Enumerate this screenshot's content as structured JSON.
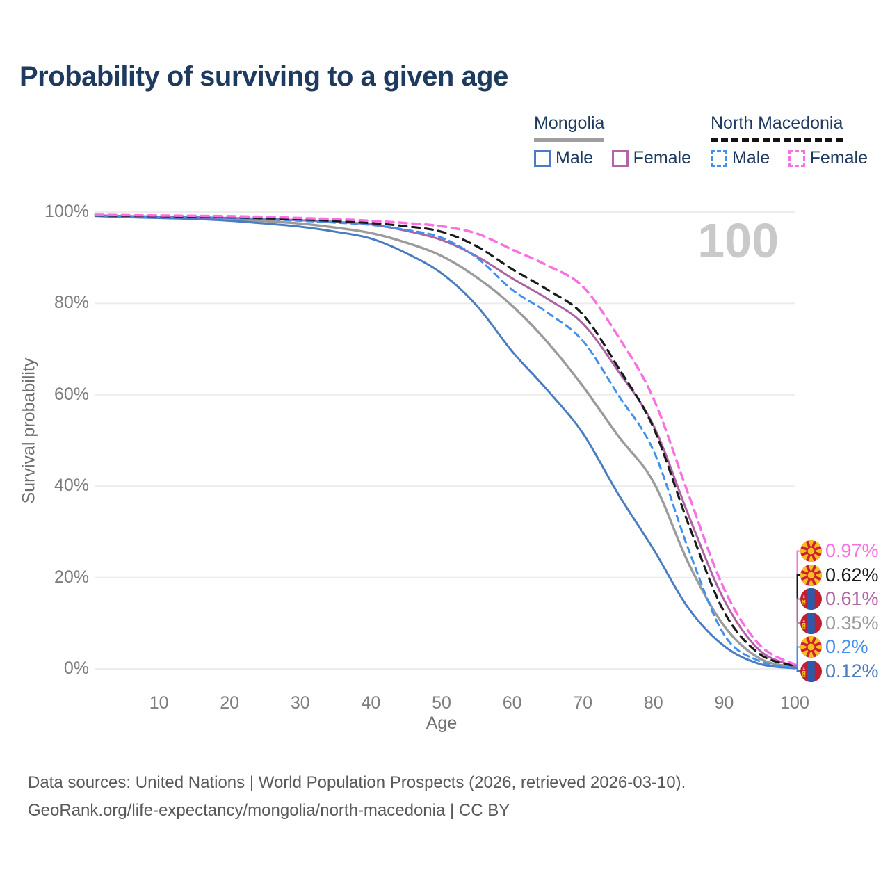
{
  "title": "Probability of surviving to a given age",
  "watermark": "100",
  "legend": {
    "groups": [
      {
        "label": "Mongolia",
        "line_style": "solid",
        "underline_color": "#9e9e9e",
        "items": [
          {
            "label": "Male",
            "color": "#4a7cc2"
          },
          {
            "label": "Female",
            "color": "#b164a8"
          }
        ]
      },
      {
        "label": "North Macedonia",
        "line_style": "dashed",
        "underline_color": "#141414",
        "items": [
          {
            "label": "Male",
            "color": "#4190ef"
          },
          {
            "label": "Female",
            "color": "#fa70e2"
          }
        ]
      }
    ]
  },
  "chart_data": {
    "type": "line",
    "xlabel": "Age",
    "ylabel": "Survival probability",
    "xlim": [
      0,
      100
    ],
    "ylim": [
      0,
      100
    ],
    "grid": "horizontal",
    "x": [
      1,
      5,
      10,
      15,
      20,
      25,
      30,
      35,
      40,
      45,
      50,
      55,
      60,
      65,
      70,
      75,
      80,
      85,
      90,
      95,
      100
    ],
    "x_ticks": [
      {
        "value": 10,
        "label": "10"
      },
      {
        "value": 20,
        "label": "20"
      },
      {
        "value": 30,
        "label": "30"
      },
      {
        "value": 40,
        "label": "40"
      },
      {
        "value": 50,
        "label": "50"
      },
      {
        "value": 60,
        "label": "60"
      },
      {
        "value": 70,
        "label": "70"
      },
      {
        "value": 80,
        "label": "80"
      },
      {
        "value": 90,
        "label": "90"
      },
      {
        "value": 100,
        "label": "100"
      }
    ],
    "y_ticks": [
      {
        "value": 0,
        "label": "0%"
      },
      {
        "value": 20,
        "label": "20%"
      },
      {
        "value": 40,
        "label": "40%"
      },
      {
        "value": 60,
        "label": "60%"
      },
      {
        "value": 80,
        "label": "80%"
      },
      {
        "value": 100,
        "label": "100%"
      }
    ],
    "series": [
      {
        "name": "Mongolia (total)",
        "country": "mongolia",
        "sex": "total",
        "color": "#9b9b9b",
        "dash": null,
        "width": 3.4,
        "values": [
          99.2,
          99.0,
          98.8,
          98.6,
          98.4,
          98.0,
          97.5,
          96.6,
          95.4,
          93.3,
          90.4,
          85.7,
          79.5,
          71.5,
          61.9,
          51.0,
          40.9,
          23.0,
          9.4,
          2.3,
          0.35
        ]
      },
      {
        "name": "Mongolia Male",
        "country": "mongolia",
        "sex": "male",
        "color": "#4a7cc2",
        "dash": null,
        "width": 3,
        "values": [
          99.15,
          98.9,
          98.7,
          98.5,
          98.1,
          97.5,
          96.8,
          95.7,
          94.2,
          91.0,
          86.6,
          79.5,
          69.5,
          61.0,
          51.6,
          38.3,
          26.2,
          13.2,
          5.0,
          1.1,
          0.12
        ]
      },
      {
        "name": "Mongolia Female",
        "country": "mongolia",
        "sex": "female",
        "color": "#ab63a4",
        "dash": null,
        "width": 3,
        "values": [
          99.3,
          99.15,
          99.0,
          98.85,
          98.7,
          98.5,
          98.2,
          97.85,
          97.3,
          95.9,
          93.9,
          90.3,
          85.5,
          81.0,
          75.6,
          65.2,
          53.3,
          33.5,
          15.1,
          4.1,
          0.61
        ]
      },
      {
        "name": "North Macedonia Male",
        "country": "north-macedonia",
        "sex": "male",
        "color": "#4190ef",
        "dash": "9 7",
        "width": 3,
        "values": [
          99.25,
          99.12,
          99.0,
          98.9,
          98.7,
          98.45,
          98.1,
          97.7,
          97.2,
          96.1,
          94.4,
          90.0,
          83.0,
          78.0,
          71.8,
          60.0,
          47.8,
          26.0,
          7.5,
          1.7,
          0.2
        ]
      },
      {
        "name": "North Macedonia (total)",
        "country": "north-macedonia",
        "sex": "total",
        "color": "#1a1a1a",
        "dash": "11 8",
        "width": 3.2,
        "values": [
          99.3,
          99.2,
          99.1,
          99.0,
          98.85,
          98.65,
          98.4,
          98.05,
          97.6,
          96.9,
          95.7,
          92.5,
          87.5,
          83.0,
          77.6,
          66.0,
          52.8,
          31.5,
          12.5,
          3.3,
          0.62
        ]
      },
      {
        "name": "North Macedonia Female",
        "country": "north-macedonia",
        "sex": "female",
        "color": "#fa70e2",
        "dash": "11 8",
        "width": 3.5,
        "values": [
          99.4,
          99.33,
          99.25,
          99.18,
          99.1,
          98.95,
          98.7,
          98.45,
          98.1,
          97.6,
          96.9,
          95.3,
          91.8,
          88.3,
          83.7,
          72.8,
          59.2,
          38.0,
          17.5,
          5.3,
          0.97
        ]
      }
    ],
    "end_labels": [
      {
        "label": "0.97%",
        "value": 0.97,
        "country": "north-macedonia",
        "sex": "female",
        "color": "#fa70e2"
      },
      {
        "label": "0.62%",
        "value": 0.62,
        "country": "north-macedonia",
        "sex": "total",
        "color": "#1a1a1a"
      },
      {
        "label": "0.61%",
        "value": 0.61,
        "country": "mongolia",
        "sex": "female",
        "color": "#b164a8"
      },
      {
        "label": "0.35%",
        "value": 0.35,
        "country": "mongolia",
        "sex": "total",
        "color": "#9b9b9b"
      },
      {
        "label": "0.2%",
        "value": 0.2,
        "country": "north-macedonia",
        "sex": "male",
        "color": "#4190ef"
      },
      {
        "label": "0.12%",
        "value": 0.12,
        "country": "mongolia",
        "sex": "male",
        "color": "#4a7cc2"
      }
    ]
  },
  "source": {
    "line1": "Data sources: United Nations | World Population Prospects (2026, retrieved 2026-03-10).",
    "line2": "GeoRank.org/life-expectancy/mongolia/north-macedonia | CC BY"
  }
}
